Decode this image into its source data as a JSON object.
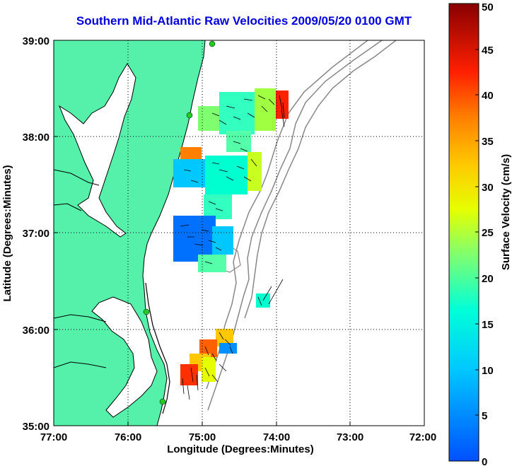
{
  "title": "Southern Mid-Atlantic Raw Velocities 2009/05/20 0100 GMT",
  "axes": {
    "xlabel": "Longitude (Degrees:Minutes)",
    "ylabel": "Latitude (Degrees:Minutes)",
    "xticks": [
      "77:00",
      "76:00",
      "75:00",
      "74:00",
      "73:00",
      "72:00"
    ],
    "yticks": [
      "39:00",
      "38:00",
      "37:00",
      "36:00",
      "35:00"
    ]
  },
  "colorbar": {
    "label": "Surface Velocity (cm/s)",
    "ticks": [
      "0",
      "5",
      "10",
      "15",
      "20",
      "25",
      "30",
      "35",
      "40",
      "45",
      "50"
    ],
    "min": 0,
    "max": 50
  },
  "colors": {
    "land": "#55f0aa",
    "title": "#0000dd",
    "coast": "#000000",
    "bathymetry": "#888888",
    "site": "#22cc22"
  }
}
